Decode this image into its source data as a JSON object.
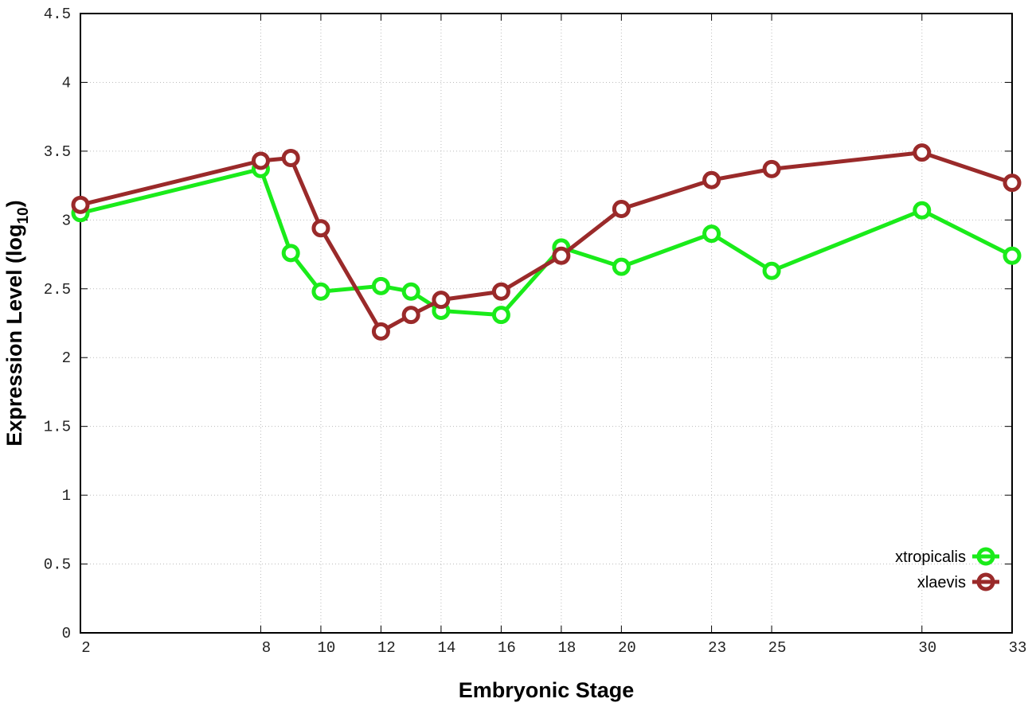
{
  "chart_data": {
    "type": "line",
    "title": "",
    "xlabel": "Embryonic Stage",
    "ylabel": "Expression Level (log",
    "ylabel_sub": "10",
    "ylabel_close": ")",
    "xlim": [
      2,
      33
    ],
    "ylim": [
      0,
      4.5
    ],
    "x_ticks": [
      2,
      8,
      10,
      12,
      14,
      16,
      18,
      20,
      23,
      25,
      30,
      33
    ],
    "y_ticks": [
      0,
      0.5,
      1,
      1.5,
      2,
      2.5,
      3,
      3.5,
      4,
      4.5
    ],
    "y_tick_labels": [
      "0",
      "0.5",
      "1",
      "1.5",
      "2",
      "2.5",
      "3",
      "3.5",
      "4",
      "4.5"
    ],
    "grid": true,
    "legend_position": "bottom-right",
    "x": [
      2,
      8,
      9,
      10,
      12,
      13,
      14,
      16,
      18,
      20,
      23,
      25,
      30,
      33
    ],
    "series": [
      {
        "name": "xtropicalis",
        "color": "#1aeb1a",
        "values": [
          3.05,
          3.37,
          2.76,
          2.48,
          2.52,
          2.48,
          2.34,
          2.31,
          2.8,
          2.66,
          2.9,
          2.63,
          3.07,
          2.74
        ]
      },
      {
        "name": "xlaevis",
        "color": "#9a2a2a",
        "values": [
          3.11,
          3.43,
          3.45,
          2.94,
          2.19,
          2.31,
          2.42,
          2.48,
          2.74,
          3.08,
          3.29,
          3.37,
          3.49,
          3.27
        ]
      }
    ]
  }
}
